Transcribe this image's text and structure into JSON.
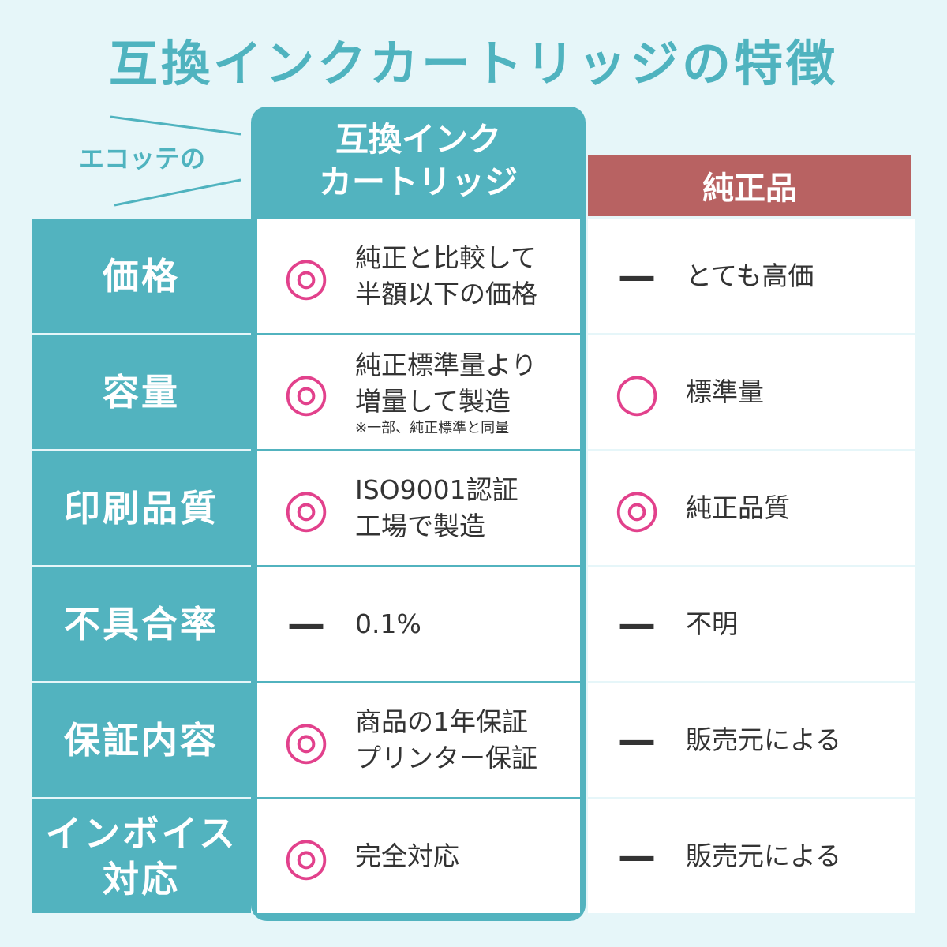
{
  "title": "互換インクカートリッジの特徴",
  "tag": "エコッテの",
  "columns": {
    "ours": [
      "互換インク",
      "カートリッジ"
    ],
    "genuine": "純正品"
  },
  "rows": [
    {
      "label": [
        "価格"
      ],
      "ours": {
        "mark": "◎",
        "text": [
          "純正と比較して",
          "半額以下の価格"
        ]
      },
      "genuine": {
        "mark": "—",
        "text": [
          "とても高価"
        ]
      }
    },
    {
      "label": [
        "容量"
      ],
      "ours": {
        "mark": "◎",
        "text": [
          "純正標準量より",
          "増量して製造"
        ],
        "note": "※一部、純正標準と同量"
      },
      "genuine": {
        "mark": "○",
        "text": [
          "標準量"
        ]
      }
    },
    {
      "label": [
        "印刷品質"
      ],
      "ours": {
        "mark": "◎",
        "text": [
          "ISO9001認証",
          "工場で製造"
        ]
      },
      "genuine": {
        "mark": "◎",
        "text": [
          "純正品質"
        ]
      }
    },
    {
      "label": [
        "不具合率"
      ],
      "ours": {
        "mark": "—",
        "text": [
          "0.1%"
        ]
      },
      "genuine": {
        "mark": "—",
        "text": [
          "不明"
        ]
      }
    },
    {
      "label": [
        "保証内容"
      ],
      "ours": {
        "mark": "◎",
        "text": [
          "商品の1年保証",
          "プリンター保証"
        ]
      },
      "genuine": {
        "mark": "—",
        "text": [
          "販売元による"
        ]
      }
    },
    {
      "label": [
        "インボイス",
        "対応"
      ],
      "ours": {
        "mark": "◎",
        "text": [
          "完全対応"
        ]
      },
      "genuine": {
        "mark": "—",
        "text": [
          "販売元による"
        ]
      }
    }
  ]
}
